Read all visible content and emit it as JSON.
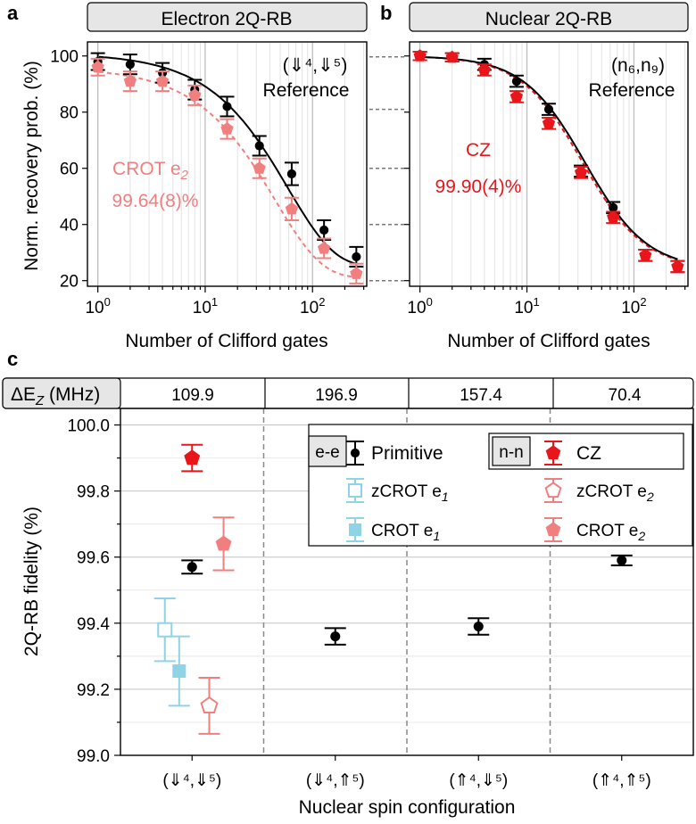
{
  "colors": {
    "black": "#000000",
    "ref_fit": "#000000",
    "crot_e2": "#f08080",
    "cz": "#e8161b",
    "e1": "#8fd3e6",
    "grid_minor": "#d9d9d9",
    "grid_major": "#bdbdbd",
    "strip_fill": "#e6e6e6"
  },
  "panel_a": {
    "letter": "a",
    "strip_title": "Electron 2Q-RB",
    "ylabel": "Norm. recovery prob. (%)",
    "xlabel": "Number of Clifford gates",
    "reference_config": "(⇓⁴,⇓⁵)",
    "reference_label": "Reference",
    "gate_label": "CROT e",
    "gate_sub": "2",
    "gate_fidelity": "99.64(8)%"
  },
  "panel_b": {
    "letter": "b",
    "strip_title": "Nuclear 2Q-RB",
    "xlabel": "Number of Clifford gates",
    "reference_config": "(n₆,n₉)",
    "reference_label": "Reference",
    "gate_label": "CZ",
    "gate_fidelity": "99.90(4)%"
  },
  "panel_c": {
    "letter": "c",
    "dez_label": "ΔE",
    "dez_sub": "Z",
    "dez_unit": " (MHz)",
    "dez_values": [
      "109.9",
      "196.9",
      "157.4",
      "70.4"
    ],
    "ylabel": "2Q-RB fidelity (%)",
    "xlabel": "Nuclear spin configuration",
    "legend": {
      "ee_tag": "e-e",
      "nn_tag": "n-n",
      "primitive": "Primitive",
      "cz": "CZ",
      "zcrot_e1": "zCROT e",
      "zcrot_e2": "zCROT e",
      "crot_e1": "CROT e",
      "crot_e2": "CROT e",
      "sub1": "1",
      "sub2": "2"
    }
  },
  "chart_data": [
    {
      "type": "scatter",
      "panel": "a",
      "title": "Electron 2Q-RB",
      "xlabel": "Number of Clifford gates",
      "ylabel": "Norm. recovery prob. (%)",
      "xscale": "log",
      "xlim": [
        0.8,
        320
      ],
      "ylim": [
        18,
        105
      ],
      "x_ticks": [
        1,
        10,
        100
      ],
      "x_tick_labels": [
        "10⁰",
        "10¹",
        "10²"
      ],
      "y_ticks": [
        20,
        40,
        60,
        80,
        100
      ],
      "fit": {
        "model": "exp",
        "reference": {
          "A": 76,
          "B": 25,
          "L": 59
        },
        "crot_e2": {
          "A": 75,
          "B": 21,
          "L": 45
        }
      },
      "series": [
        {
          "name": "Reference (⇓⁴,⇓⁵)",
          "marker": "circle",
          "color": "#000000",
          "x": [
            1,
            2,
            4,
            8,
            16,
            32,
            64,
            128,
            256
          ],
          "y": [
            98,
            97,
            94,
            88,
            82,
            68,
            58,
            38,
            28.5
          ],
          "err": [
            3,
            3.5,
            3.5,
            3.5,
            3.5,
            3.5,
            4,
            3.5,
            3.5
          ]
        },
        {
          "name": "CROT e2",
          "marker": "pentagon",
          "color": "#f08080",
          "x": [
            1,
            2,
            4,
            8,
            16,
            32,
            64,
            128,
            256
          ],
          "y": [
            96,
            91,
            91,
            86,
            74,
            60,
            45.5,
            31.5,
            22.5
          ],
          "err": [
            3,
            3.5,
            3.5,
            3.5,
            3.5,
            3.5,
            4,
            3.5,
            3.5
          ]
        }
      ]
    },
    {
      "type": "scatter",
      "panel": "b",
      "title": "Nuclear 2Q-RB",
      "xlabel": "Number of Clifford gates",
      "xscale": "log",
      "xlim": [
        0.8,
        320
      ],
      "ylim": [
        18,
        105
      ],
      "x_ticks": [
        1,
        10,
        100
      ],
      "x_tick_labels": [
        "10⁰",
        "10¹",
        "10²"
      ],
      "fit": {
        "model": "logistic",
        "x50": 35,
        "slope": 1.5,
        "top": 100,
        "bottom": 24
      },
      "series": [
        {
          "name": "Reference (n₆,n₉)",
          "marker": "circle",
          "color": "#000000",
          "x": [
            1,
            2,
            4,
            8,
            16,
            32,
            64,
            128,
            256
          ],
          "y": [
            100,
            99.5,
            97,
            91,
            81,
            59,
            46,
            29,
            25
          ],
          "err": [
            1.5,
            1.5,
            2,
            2,
            2,
            2,
            2,
            2,
            2
          ]
        },
        {
          "name": "CZ",
          "marker": "pentagon",
          "color": "#e8161b",
          "x": [
            1,
            2,
            4,
            8,
            16,
            32,
            64,
            128,
            256
          ],
          "y": [
            100,
            99.5,
            95,
            85.5,
            76,
            58.5,
            42.5,
            29,
            25
          ],
          "err": [
            1.5,
            1.5,
            2,
            2,
            2,
            2,
            2,
            2,
            2
          ]
        }
      ]
    },
    {
      "type": "scatter",
      "panel": "c",
      "xlabel": "Nuclear spin configuration",
      "ylabel": "2Q-RB fidelity (%)",
      "categories": [
        "(⇓⁴,⇓⁵)",
        "(⇓⁴,⇑⁵)",
        "(⇑⁴,⇓⁵)",
        "(⇑⁴,⇑⁵)"
      ],
      "ylim": [
        99.0,
        100.05
      ],
      "y_ticks": [
        99.0,
        99.2,
        99.4,
        99.6,
        99.8,
        100.0
      ],
      "y_tick_labels": [
        "99.0",
        "99.2",
        "99.4",
        "99.6",
        "99.8",
        "100.0"
      ],
      "series": [
        {
          "name": "Primitive",
          "marker": "circle",
          "color": "#000000",
          "category_index": [
            0,
            1,
            2,
            3
          ],
          "offset": [
            0,
            0,
            0,
            0
          ],
          "y": [
            99.57,
            99.36,
            99.39,
            99.59
          ],
          "err": [
            0.02,
            0.025,
            0.025,
            0.015
          ]
        },
        {
          "name": "CZ",
          "marker": "pentagon",
          "color": "#e8161b",
          "category_index": [
            0
          ],
          "offset": [
            0
          ],
          "y": [
            99.9
          ],
          "err": [
            0.04
          ]
        },
        {
          "name": "CROT e2",
          "marker": "pentagon",
          "color": "#f08080",
          "category_index": [
            0
          ],
          "offset": [
            0.22
          ],
          "y": [
            99.64
          ],
          "err": [
            0.08
          ]
        },
        {
          "name": "zCROT e1",
          "marker": "open-square",
          "color": "#8fd3e6",
          "category_index": [
            0
          ],
          "offset": [
            -0.19
          ],
          "y": [
            99.38
          ],
          "err": [
            0.095
          ]
        },
        {
          "name": "CROT e1",
          "marker": "square",
          "color": "#8fd3e6",
          "category_index": [
            0
          ],
          "offset": [
            -0.09
          ],
          "y": [
            99.255
          ],
          "err": [
            0.105
          ]
        },
        {
          "name": "zCROT e2",
          "marker": "open-pentagon",
          "color": "#f08080",
          "category_index": [
            0
          ],
          "offset": [
            0.12
          ],
          "y": [
            99.15
          ],
          "err": [
            0.085
          ]
        }
      ]
    }
  ]
}
